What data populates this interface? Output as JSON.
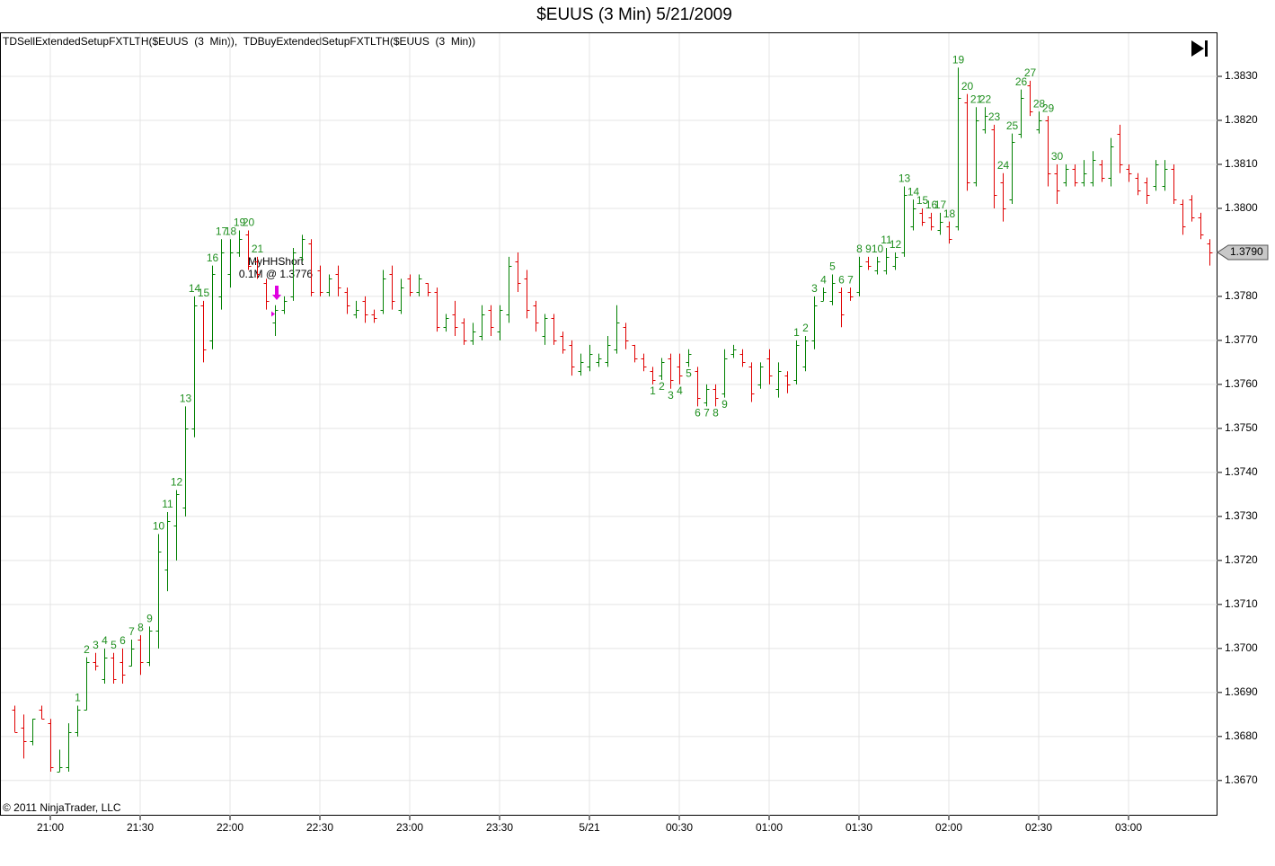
{
  "chart_data": {
    "type": "ohlc",
    "title": "$EUUS (3 Min)  5/21/2009",
    "legend_text": "TDSellExtendedSetupFXTLTH($EUUS  (3  Min)),  TDBuyExtendedSetupFXTLTH($EUUS  (3  Min))",
    "copyright": "© 2011 NinjaTrader, LLC",
    "categories": [
      null,
      null,
      null,
      null,
      "21:00",
      null,
      null,
      null,
      null,
      null,
      null,
      null,
      null,
      null,
      "21:30",
      null,
      null,
      null,
      null,
      null,
      null,
      null,
      null,
      null,
      "22:00",
      null,
      null,
      null,
      null,
      null,
      null,
      null,
      null,
      null,
      "22:30",
      null,
      null,
      null,
      null,
      null,
      null,
      null,
      null,
      null,
      "23:00",
      null,
      null,
      null,
      null,
      null,
      null,
      null,
      null,
      null,
      "23:30",
      null,
      null,
      null,
      null,
      null,
      null,
      null,
      null,
      null,
      "5/21",
      null,
      null,
      null,
      null,
      null,
      null,
      null,
      null,
      null,
      "00:30",
      null,
      null,
      null,
      null,
      null,
      null,
      null,
      null,
      null,
      "01:00",
      null,
      null,
      null,
      null,
      null,
      null,
      null,
      null,
      null,
      "01:30",
      null,
      null,
      null,
      null,
      null,
      null,
      null,
      null,
      null,
      "02:00",
      null,
      null,
      null,
      null,
      null,
      null,
      null,
      null,
      null,
      "02:30",
      null,
      null,
      null,
      null,
      null,
      null,
      null,
      null,
      null,
      "03:00",
      null,
      null,
      null,
      null,
      null,
      null,
      null,
      null,
      null
    ],
    "open": [
      1.3686,
      1.3682,
      1.3679,
      1.3686,
      1.3683,
      1.3672,
      1.3673,
      1.3681,
      1.3686,
      1.3697,
      1.3693,
      1.3698,
      1.3697,
      1.3696,
      1.3702,
      1.3697,
      1.3704,
      1.3718,
      1.3728,
      1.3732,
      1.375,
      1.3778,
      1.377,
      1.378,
      1.3785,
      1.379,
      1.3794,
      1.3788,
      1.3783,
      1.3774,
      1.3777,
      1.378,
      1.3789,
      1.3792,
      1.3786,
      1.3781,
      1.3785,
      1.3781,
      1.3776,
      1.3779,
      1.3776,
      1.3777,
      1.3785,
      1.3777,
      1.3784,
      1.3781,
      1.3783,
      1.3781,
      1.3773,
      1.3776,
      1.3774,
      1.377,
      1.3771,
      1.3777,
      1.3772,
      1.3776,
      1.3788,
      1.3784,
      1.3778,
      1.3771,
      1.3775,
      1.3771,
      1.3769,
      1.3763,
      1.3764,
      1.3765,
      1.3765,
      1.3768,
      1.3773,
      1.3769,
      1.3766,
      1.3763,
      1.3762,
      1.3766,
      1.3764,
      1.3765,
      1.3763,
      1.3756,
      1.3759,
      1.3758,
      1.3767,
      1.3767,
      1.3764,
      1.376,
      1.3766,
      1.3759,
      1.3762,
      1.3761,
      1.3764,
      1.377,
      1.3779,
      1.3779,
      1.3781,
      1.3781,
      1.3781,
      1.3788,
      1.3786,
      1.3786,
      1.3787,
      1.379,
      1.3796,
      1.3799,
      1.3798,
      1.3795,
      1.3796,
      1.3796,
      1.3824,
      1.3806,
      1.3818,
      1.3818,
      1.3806,
      1.3802,
      1.3817,
      1.3828,
      1.3818,
      1.382,
      1.3808,
      1.3806,
      1.3809,
      1.3806,
      1.3806,
      1.381,
      1.3807,
      1.3817,
      1.3809,
      1.3807,
      1.3806,
      1.3805,
      1.3805,
      1.3809,
      1.3801,
      1.3802,
      1.3798,
      1.3792
    ],
    "high": [
      1.3687,
      1.3685,
      1.3684,
      1.3687,
      1.3684,
      1.3677,
      1.3683,
      1.3687,
      1.3698,
      1.3699,
      1.37,
      1.3699,
      1.37,
      1.3702,
      1.3703,
      1.3705,
      1.3726,
      1.3731,
      1.3736,
      1.3755,
      1.378,
      1.3779,
      1.3787,
      1.3793,
      1.3793,
      1.3795,
      1.3795,
      1.3789,
      1.3784,
      1.3778,
      1.378,
      1.3791,
      1.3794,
      1.3793,
      1.3787,
      1.3785,
      1.3787,
      1.3782,
      1.3779,
      1.378,
      1.3777,
      1.3786,
      1.3787,
      1.3784,
      1.3785,
      1.3785,
      1.3783,
      1.3782,
      1.3776,
      1.3779,
      1.3775,
      1.3774,
      1.3778,
      1.3778,
      1.3778,
      1.3789,
      1.379,
      1.3786,
      1.3779,
      1.3776,
      1.3776,
      1.3772,
      1.377,
      1.3767,
      1.3769,
      1.3767,
      1.3771,
      1.3778,
      1.3774,
      1.3769,
      1.3767,
      1.3764,
      1.3766,
      1.3767,
      1.3767,
      1.3768,
      1.3764,
      1.376,
      1.376,
      1.3768,
      1.3769,
      1.3768,
      1.3765,
      1.3765,
      1.3768,
      1.3765,
      1.3763,
      1.377,
      1.3771,
      1.378,
      1.3782,
      1.3785,
      1.3782,
      1.3782,
      1.3789,
      1.3789,
      1.3789,
      1.3791,
      1.379,
      1.3805,
      1.3802,
      1.38,
      1.3799,
      1.3799,
      1.3797,
      1.3832,
      1.3826,
      1.3823,
      1.3823,
      1.3819,
      1.3808,
      1.3817,
      1.3827,
      1.3829,
      1.3822,
      1.3821,
      1.381,
      1.381,
      1.381,
      1.3811,
      1.3813,
      1.3811,
      1.3816,
      1.3819,
      1.381,
      1.3808,
      1.3807,
      1.3811,
      1.3811,
      1.381,
      1.3802,
      1.3803,
      1.3799,
      1.3793
    ],
    "low": [
      1.3681,
      1.3675,
      1.3678,
      1.3684,
      1.3672,
      1.3672,
      1.3672,
      1.368,
      1.3686,
      1.3695,
      1.3692,
      1.3692,
      1.3692,
      1.3696,
      1.3694,
      1.3696,
      1.37,
      1.3713,
      1.372,
      1.373,
      1.3748,
      1.3765,
      1.3768,
      1.3777,
      1.3782,
      1.3789,
      1.3786,
      1.3784,
      1.3777,
      1.3771,
      1.3776,
      1.3779,
      1.3788,
      1.378,
      1.378,
      1.378,
      1.378,
      1.3776,
      1.3775,
      1.3774,
      1.3774,
      1.3776,
      1.3777,
      1.3776,
      1.378,
      1.378,
      1.378,
      1.3772,
      1.3772,
      1.3771,
      1.3769,
      1.3769,
      1.377,
      1.3771,
      1.377,
      1.3774,
      1.3781,
      1.3775,
      1.3772,
      1.3769,
      1.3769,
      1.3767,
      1.3762,
      1.3762,
      1.3763,
      1.3764,
      1.3764,
      1.3767,
      1.3768,
      1.3765,
      1.3763,
      1.376,
      1.3761,
      1.3759,
      1.376,
      1.3764,
      1.3755,
      1.3755,
      1.3755,
      1.3757,
      1.3766,
      1.3764,
      1.3756,
      1.3759,
      1.376,
      1.3757,
      1.3758,
      1.376,
      1.3763,
      1.3768,
      1.3779,
      1.3778,
      1.3773,
      1.3779,
      1.378,
      1.3786,
      1.3785,
      1.3785,
      1.3786,
      1.3789,
      1.3795,
      1.3796,
      1.3795,
      1.3794,
      1.3792,
      1.3795,
      1.3804,
      1.3805,
      1.3817,
      1.38,
      1.3797,
      1.3801,
      1.3816,
      1.3821,
      1.3817,
      1.3805,
      1.3801,
      1.3805,
      1.3805,
      1.3805,
      1.3805,
      1.3806,
      1.3805,
      1.3808,
      1.3806,
      1.3803,
      1.3801,
      1.3804,
      1.3804,
      1.3801,
      1.3794,
      1.3797,
      1.3793,
      1.3787
    ],
    "close": [
      1.3681,
      1.3679,
      1.3684,
      1.3684,
      1.3673,
      1.3673,
      1.3681,
      1.3686,
      1.3697,
      1.3696,
      1.3698,
      1.3693,
      1.3694,
      1.37,
      1.3697,
      1.3704,
      1.3722,
      1.3729,
      1.3735,
      1.375,
      1.3778,
      1.3768,
      1.3785,
      1.379,
      1.379,
      1.3793,
      1.3787,
      1.3785,
      1.3779,
      1.3777,
      1.3779,
      1.379,
      1.3793,
      1.3781,
      1.3781,
      1.3784,
      1.3782,
      1.3778,
      1.3777,
      1.3776,
      1.3775,
      1.3784,
      1.3779,
      1.3782,
      1.3781,
      1.3784,
      1.3781,
      1.3773,
      1.3775,
      1.3773,
      1.377,
      1.3772,
      1.3776,
      1.3773,
      1.3777,
      1.3787,
      1.3783,
      1.3777,
      1.3774,
      1.3775,
      1.377,
      1.3768,
      1.3764,
      1.3765,
      1.3767,
      1.3766,
      1.3769,
      1.3774,
      1.377,
      1.3766,
      1.3764,
      1.3761,
      1.3765,
      1.3761,
      1.3762,
      1.3767,
      1.3757,
      1.3759,
      1.3757,
      1.3766,
      1.3768,
      1.3765,
      1.3758,
      1.3764,
      1.3762,
      1.3763,
      1.376,
      1.3769,
      1.377,
      1.3778,
      1.3781,
      1.3783,
      1.3776,
      1.378,
      1.3787,
      1.3787,
      1.3788,
      1.3789,
      1.3789,
      1.3803,
      1.38,
      1.3797,
      1.3796,
      1.3797,
      1.3793,
      1.3825,
      1.3806,
      1.382,
      1.3821,
      1.3803,
      1.38,
      1.3815,
      1.3825,
      1.3822,
      1.382,
      1.3808,
      1.3804,
      1.3809,
      1.3806,
      1.3808,
      1.3811,
      1.3807,
      1.3814,
      1.381,
      1.3808,
      1.3804,
      1.3803,
      1.381,
      1.3809,
      1.3802,
      1.3796,
      1.3798,
      1.3794,
      1.379
    ],
    "sell_setup": [
      null,
      null,
      null,
      null,
      null,
      null,
      null,
      1,
      2,
      3,
      4,
      5,
      6,
      7,
      8,
      9,
      10,
      11,
      12,
      13,
      14,
      15,
      16,
      17,
      18,
      19,
      20,
      21,
      null,
      null,
      null,
      null,
      null,
      null,
      null,
      null,
      null,
      null,
      null,
      null,
      null,
      null,
      null,
      null,
      null,
      null,
      null,
      null,
      null,
      null,
      null,
      null,
      null,
      null,
      null,
      null,
      null,
      null,
      null,
      null,
      null,
      null,
      null,
      null,
      null,
      null,
      null,
      null,
      null,
      null,
      null,
      null,
      null,
      null,
      null,
      null,
      null,
      null,
      null,
      null,
      null,
      null,
      null,
      null,
      null,
      null,
      null,
      1,
      2,
      3,
      4,
      5,
      6,
      7,
      8,
      9,
      10,
      11,
      12,
      13,
      14,
      15,
      16,
      17,
      18,
      19,
      20,
      21,
      22,
      23,
      24,
      25,
      26,
      27,
      28,
      29,
      30,
      null,
      null,
      null,
      null,
      null,
      null,
      null,
      null,
      null,
      null,
      null,
      null,
      null,
      null,
      null,
      null,
      null
    ],
    "buy_setup": [
      null,
      null,
      null,
      null,
      null,
      null,
      null,
      null,
      null,
      null,
      null,
      null,
      null,
      null,
      null,
      null,
      null,
      null,
      null,
      null,
      null,
      null,
      null,
      null,
      null,
      null,
      null,
      null,
      null,
      null,
      null,
      null,
      null,
      null,
      null,
      null,
      null,
      null,
      null,
      null,
      null,
      null,
      null,
      null,
      null,
      null,
      null,
      null,
      null,
      null,
      null,
      null,
      null,
      null,
      null,
      null,
      null,
      null,
      null,
      null,
      null,
      null,
      null,
      null,
      null,
      null,
      null,
      null,
      null,
      null,
      null,
      1,
      2,
      3,
      4,
      5,
      6,
      7,
      8,
      9,
      null,
      null,
      null,
      null,
      null,
      null,
      null,
      null,
      null,
      null,
      null,
      null,
      null,
      null,
      null,
      null,
      null,
      null,
      null,
      null,
      null,
      null,
      null,
      null,
      null,
      null,
      null,
      null,
      null,
      null,
      null,
      null,
      null,
      null,
      null,
      null,
      null,
      null,
      null,
      null,
      null,
      null,
      null,
      null,
      null,
      null,
      null,
      null,
      null,
      null,
      null,
      null,
      null,
      null
    ],
    "up_color": "#008000",
    "down_color": "#e00000",
    "setup_color": "#1f8f1f",
    "last_price_label": "1.3790",
    "trade": {
      "name": "MyHHShort",
      "label": "0.1M @ 1.3776",
      "price": 1.3776,
      "color": "#e000e0"
    },
    "ylim": [
      1.3662,
      1.384
    ],
    "yticks": [
      {
        "value": 1.367,
        "label": "1.3670"
      },
      {
        "value": 1.368,
        "label": "1.3680"
      },
      {
        "value": 1.369,
        "label": "1.3690"
      },
      {
        "value": 1.37,
        "label": "1.3700"
      },
      {
        "value": 1.371,
        "label": "1.3710"
      },
      {
        "value": 1.372,
        "label": "1.3720"
      },
      {
        "value": 1.373,
        "label": "1.3730"
      },
      {
        "value": 1.374,
        "label": "1.3740"
      },
      {
        "value": 1.375,
        "label": "1.3750"
      },
      {
        "value": 1.376,
        "label": "1.3760"
      },
      {
        "value": 1.377,
        "label": "1.3770"
      },
      {
        "value": 1.378,
        "label": "1.3780"
      },
      {
        "value": 1.379,
        "label": "1.3790"
      },
      {
        "value": 1.38,
        "label": "1.3800"
      },
      {
        "value": 1.381,
        "label": "1.3810"
      },
      {
        "value": 1.382,
        "label": "1.3820"
      },
      {
        "value": 1.383,
        "label": "1.3830"
      }
    ],
    "grid": true
  }
}
